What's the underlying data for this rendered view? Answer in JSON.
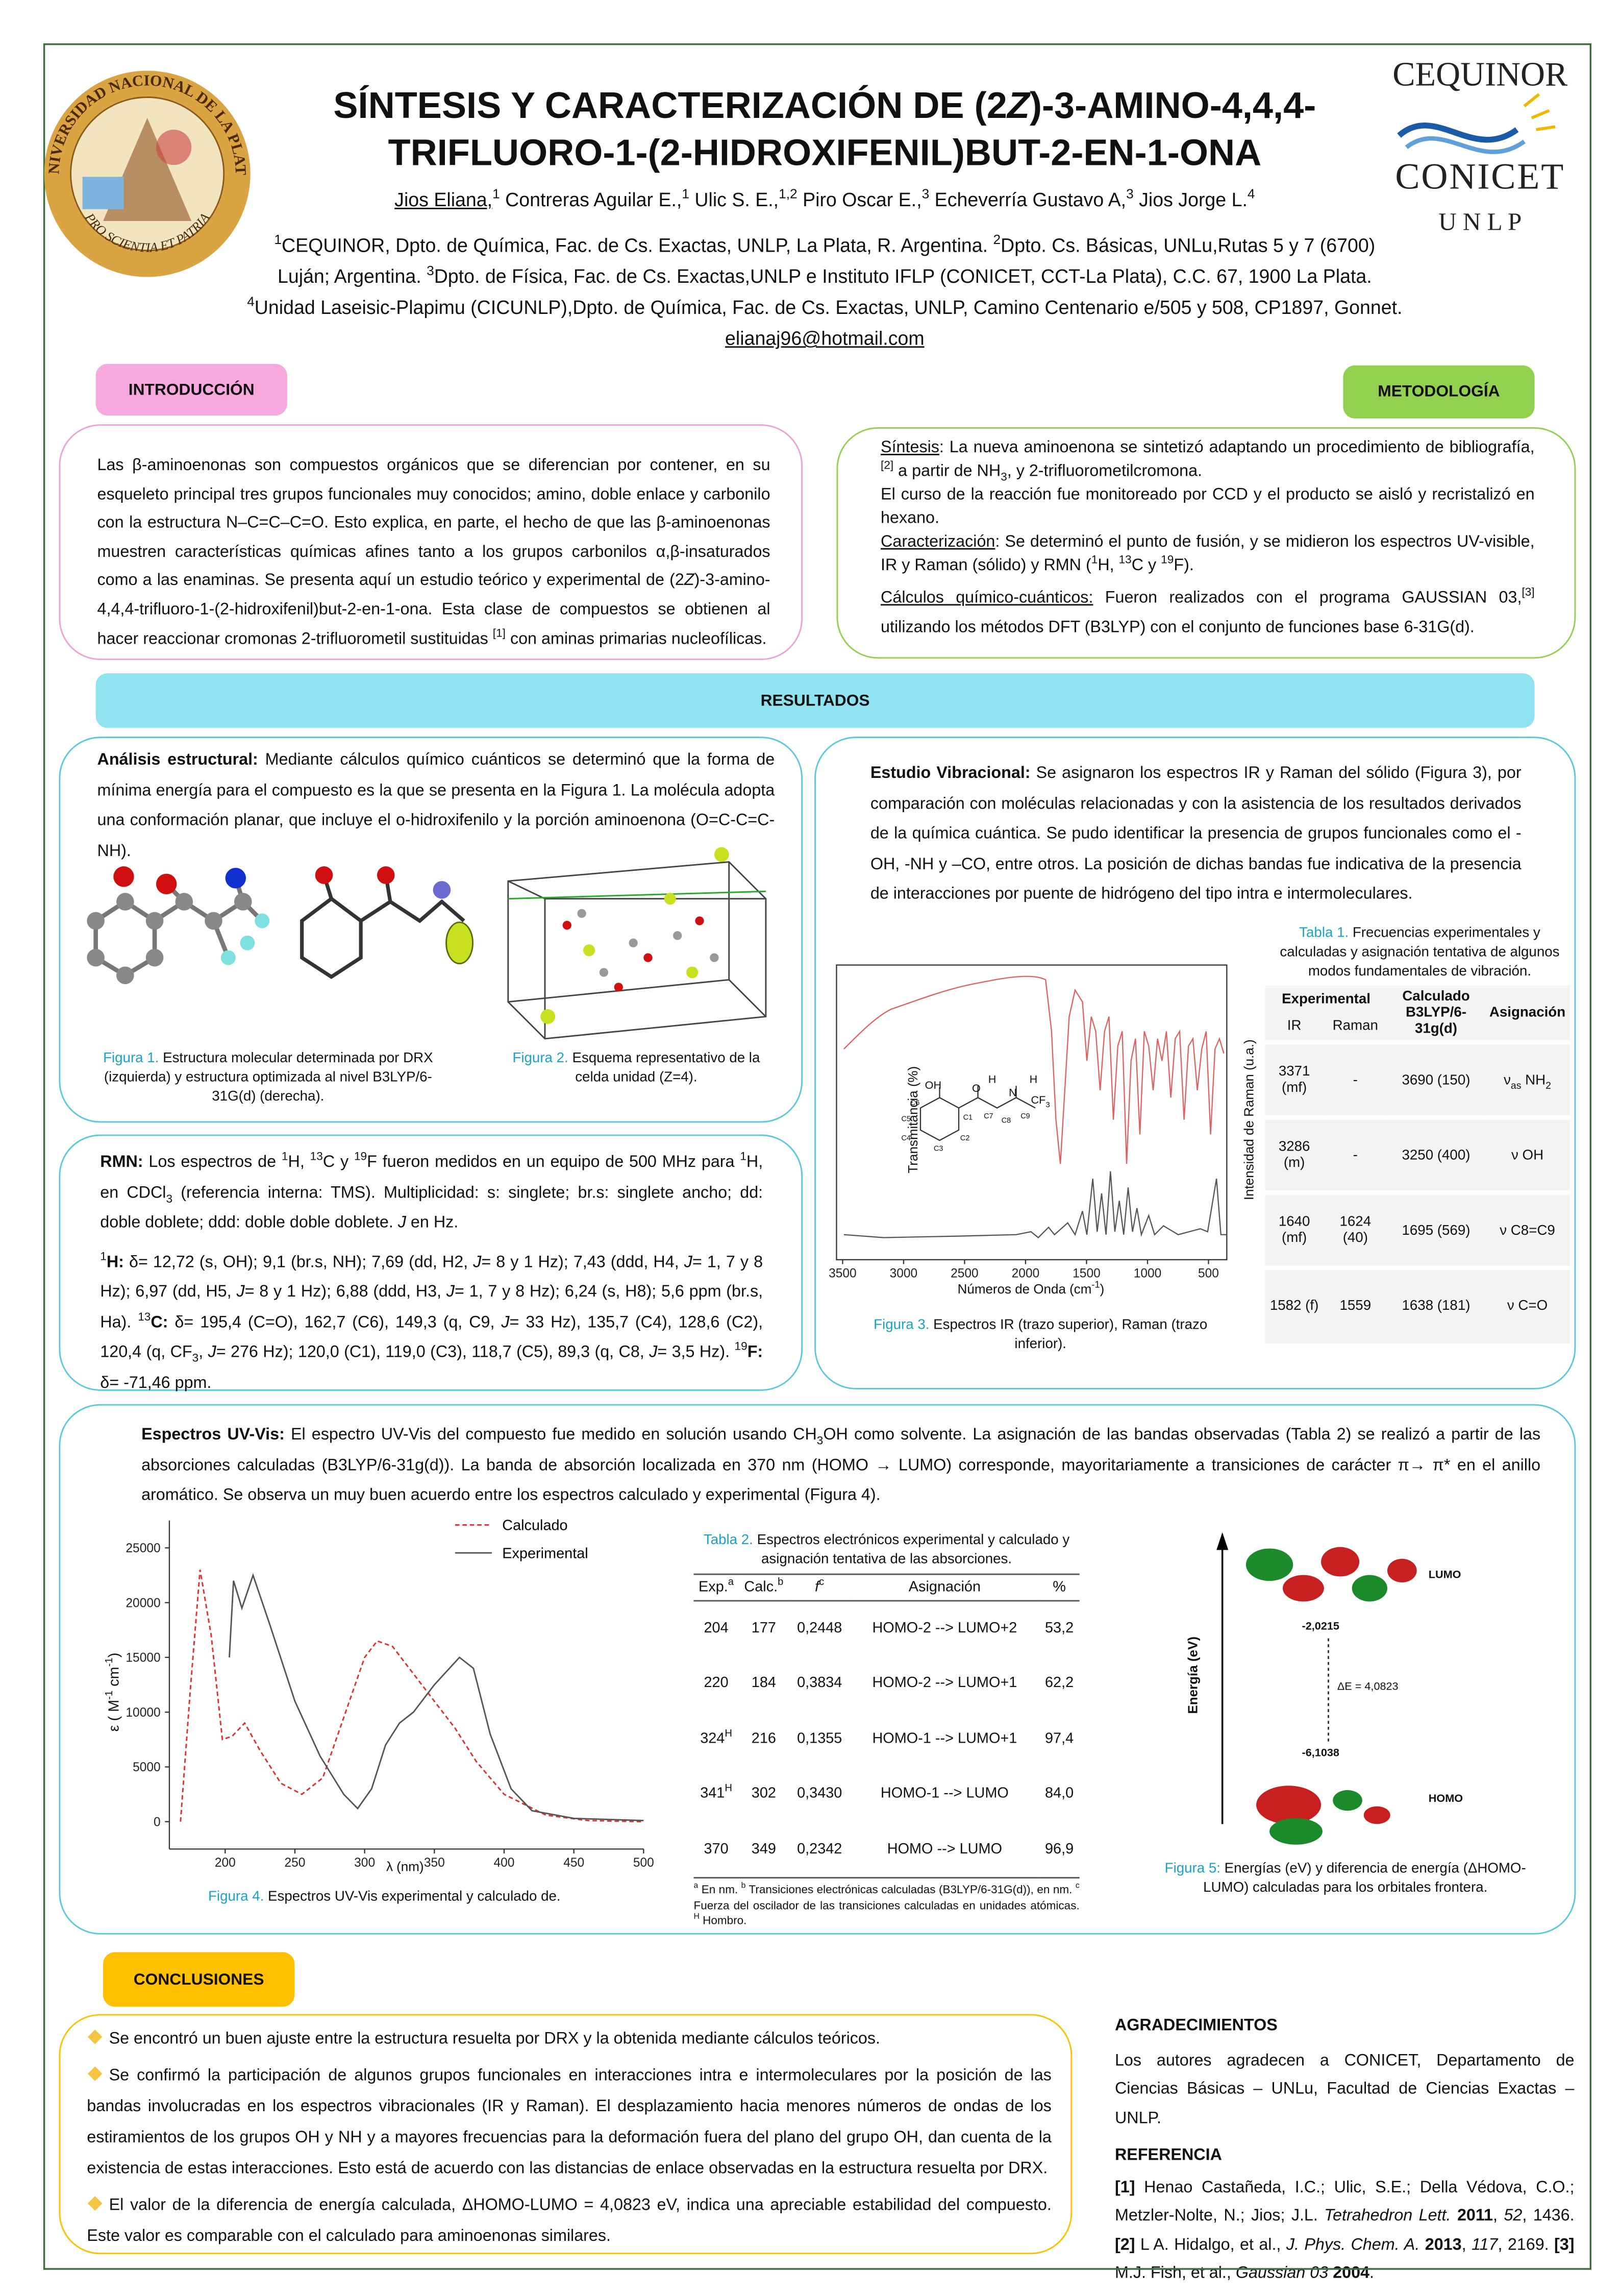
{
  "seal": {
    "top": "UNIVERSIDAD NACIONAL DE LA PLATA",
    "bottom": "PRO SCIENTIA ET PATRIA"
  },
  "logos": {
    "cequinor": "CEQUINOR",
    "conicet": "CONICET",
    "unlp": "U N L P"
  },
  "header": {
    "title_line1": [
      "SÍNTESIS Y CARACTERIZACIÓN DE (2",
      {
        "i": "Z"
      },
      ")-3-AMINO-4,4,4-"
    ],
    "title_line2": "TRIFLUORO-1-(2-HIDROXIFENIL)BUT-2-EN-1-ONA",
    "authors": [
      {
        "u": "Jios Eliana,"
      },
      {
        "sup": "1"
      },
      " Contreras Aguilar E.,",
      {
        "sup": "1"
      },
      " Ulic S. E.,",
      {
        "sup": "1,2"
      },
      " Piro Oscar E.,",
      {
        "sup": "3"
      },
      " Echeverría Gustavo A,",
      {
        "sup": "3"
      },
      " Jios Jorge L.",
      {
        "sup": "4"
      }
    ],
    "affiliations": [
      [
        {
          "sup": "1"
        },
        "CEQUINOR, Dpto. de Química, Fac. de Cs. Exactas, UNLP, La Plata, R. Argentina. ",
        {
          "sup": "2"
        },
        "Dpto. Cs. Básicas, UNLu,Rutas 5 y 7 (6700)"
      ],
      [
        "Luján; Argentina. ",
        {
          "sup": "3"
        },
        "Dpto. de Física, Fac. de Cs. Exactas,UNLP e Instituto IFLP (CONICET, CCT-La Plata), C.C. 67, 1900 La Plata."
      ],
      [
        {
          "sup": "4"
        },
        "Unidad Laseisic-Plapimu (CICUNLP),Dpto. de Química, Fac. de Cs. Exactas, UNLP, Camino Centenario e/505 y 508, CP1897, Gonnet."
      ]
    ],
    "email": "elianaj96@hotmail.com"
  },
  "sections": {
    "intro": "INTRODUCCIÓN",
    "metodologia": "METODOLOGÍA",
    "resultados": "RESULTADOS",
    "conclusiones": "CONCLUSIONES"
  },
  "intro": [
    "Las β-aminoenonas son compuestos orgánicos que se diferencian por contener, en su esqueleto principal tres grupos funcionales muy conocidos; amino, doble enlace y carbonilo con la estructura N–C=C–C=O. Esto explica, en parte, el hecho de que las β-aminoenonas muestren características químicas afines tanto a los grupos carbonilos α,β-insaturados como a las enaminas. Se presenta aquí un estudio teórico y experimental de (2",
    {
      "i": "Z"
    },
    ")-3-amino-4,4,4-trifluoro-1-(2-hidroxifenil)but-2-en-1-ona.  Esta clase de compuestos se obtienen al hacer reaccionar cromonas 2-trifluorometil sustituidas ",
    {
      "sup": "[1]"
    },
    " con aminas primarias nucleofílicas."
  ],
  "metodologia": [
    [
      {
        "u": "Síntesis"
      },
      ": La nueva aminoenona se sintetizó adaptando un procedimiento de bibliografía,",
      {
        "sup": "[2]"
      },
      " a partir de NH",
      {
        "sub": "3"
      },
      ", y 2-trifluorometilcromona."
    ],
    [
      "El curso de la reacción fue monitoreado por CCD y el producto se aisló y recristalizó en hexano."
    ],
    [
      {
        "u": "Caracterización"
      },
      ": Se determinó el punto de fusión, y se midieron los espectros UV-visible, IR y Raman (sólido) y RMN (",
      {
        "sup": "1"
      },
      "H, ",
      {
        "sup": "13"
      },
      "C y ",
      {
        "sup": "19"
      },
      "F)."
    ],
    [
      {
        "u": "Cálculos químico-cuánticos:"
      },
      " Fueron realizados con el programa GAUSSIAN 03,",
      {
        "sup": "[3]"
      },
      " utilizando los métodos DFT (B3LYP) con el conjunto de funciones base 6-31G(d)."
    ]
  ],
  "analisis": [
    {
      "b": "Análisis estructural:"
    },
    " Mediante cálculos químico cuánticos se determinó que la forma de mínima energía para el compuesto es la que se presenta en la Figura 1. La molécula adopta una conformación planar, que incluye el o-hidroxifenilo y la porción aminoenona (O=C-C=C-NH)."
  ],
  "figure1_caption": [
    {
      "fig": "Figura 1."
    },
    " Estructura molecular determinada por DRX (izquierda) y estructura optimizada al nivel B3LYP/6-31G(d) (derecha)."
  ],
  "figure2_caption": [
    {
      "fig": "Figura 2."
    },
    " Esquema representativo de la celda unidad (Z=4)."
  ],
  "rmn": [
    [
      {
        "b": "RMN:"
      },
      " Los espectros de ",
      {
        "sup": "1"
      },
      "H, ",
      {
        "sup": "13"
      },
      "C y ",
      {
        "sup": "19"
      },
      "F fueron medidos en un equipo de 500 MHz para ",
      {
        "sup": "1"
      },
      "H, en CDCl",
      {
        "sub": "3"
      },
      " (referencia interna: TMS). Multiplicidad: s: singlete; br.s: singlete ancho; dd: doble doblete; ddd: doble doble doblete. ",
      {
        "i": "J"
      },
      " en Hz."
    ],
    [
      {
        "sup": "1"
      },
      {
        "b": "H:"
      },
      " δ= 12,72 (s, OH); 9,1 (br.s, NH); 7,69 (dd, H2, ",
      {
        "i": "J"
      },
      "= 8 y 1 Hz); 7,43 (ddd, H4, ",
      {
        "i": "J"
      },
      "= 1, 7 y 8 Hz); 6,97 (dd, H5, ",
      {
        "i": "J"
      },
      "= 8 y 1 Hz); 6,88 (ddd, H3, ",
      {
        "i": "J"
      },
      "= 1, 7 y 8 Hz); 6,24 (s, H8); 5,6 ppm (br.s, Ha). ",
      {
        "sup": "13"
      },
      {
        "b": "C:"
      },
      " δ= 195,4 (C=O), 162,7 (C6), 149,3 (q, C9, ",
      {
        "i": "J"
      },
      "= 33 Hz), 135,7 (C4), 128,6 (C2), 120,4 (q, CF",
      {
        "sub": "3"
      },
      ", ",
      {
        "i": "J"
      },
      "= 276 Hz); 120,0 (C1), 119,0 (C3), 118,7 (C5), 89,3 (q, C8, ",
      {
        "i": "J"
      },
      "= 3,5 Hz). ",
      {
        "sup": "19"
      },
      {
        "b": "F:"
      },
      " δ= -71,46 ppm."
    ]
  ],
  "vibracional": [
    {
      "b": "Estudio Vibracional:"
    },
    " Se asignaron los espectros IR y Raman del sólido (Figura 3), por comparación con moléculas relacionadas y con la asistencia de los resultados derivados de la química cuántica. Se pudo identificar la presencia de grupos funcionales como el -OH, -NH y –CO, entre otros. La posición de dichas bandas fue indicativa de la presencia de interacciones por puente de hidrógeno del tipo intra e intermoleculares."
  ],
  "table1": {
    "caption": [
      {
        "fig": "Tabla 1."
      },
      " Frecuencias experimentales y calculadas y asignación tentativa de algunos modos fundamentales de vibración."
    ],
    "head": {
      "experimental": "Experimental",
      "calculado": "Calculado",
      "calculado_method": "B3LYP/6-31g(d)",
      "asignacion": "Asignación",
      "ir": "IR",
      "raman": "Raman"
    },
    "rows": [
      [
        "3371 (mf)",
        "-",
        "3690 (150)",
        [
          "ν",
          {
            "sub": "as"
          },
          " NH",
          {
            "sub": "2"
          }
        ]
      ],
      [
        "3286 (m)",
        "-",
        "3250 (400)",
        "ν OH"
      ],
      [
        "1640 (mf)",
        "1624 (40)",
        "1695 (569)",
        "ν C8=C9"
      ],
      [
        "1582 (f)",
        "1559",
        "1638 (181)",
        "ν C=O"
      ]
    ]
  },
  "figure3": {
    "caption": [
      {
        "fig": "Figura 3."
      },
      " Espectros IR (trazo superior), Raman (trazo inferior)."
    ],
    "inset_labels": [
      "OH",
      "O",
      "H",
      "N",
      "H",
      "C6",
      "C5",
      "C4",
      "C3",
      "C2",
      "C1",
      "C7",
      "C8",
      "C9"
    ],
    "inset_cf3": [
      "CF",
      {
        "sub": "3"
      }
    ]
  },
  "chart_data": [
    {
      "type": "line",
      "xlabel": [
        "Números de Onda (cm",
        {
          "sup": "-1"
        },
        ")"
      ],
      "ylabel": "Transmitancia (%)",
      "y2label": "Intensidad de Raman (u.a.)",
      "xlim": [
        3550,
        350
      ],
      "xticks": [
        3500,
        3000,
        2500,
        2000,
        1500,
        1000,
        500
      ]
    },
    {
      "type": "line",
      "xlabel": "λ (nm)",
      "ylabel": [
        "ε ( M",
        {
          "sup": "-1"
        },
        " cm",
        {
          "sup": "-1"
        },
        ")"
      ],
      "xlim": [
        160,
        500
      ],
      "xticks": [
        200,
        250,
        300,
        350,
        400,
        450,
        500
      ],
      "ylim": [
        -2500,
        27500
      ],
      "yticks": [
        0,
        5000,
        10000,
        15000,
        20000,
        25000
      ],
      "legend": "upper right",
      "series": [
        {
          "name": "Calculado",
          "color": "#e03030",
          "line_style": "dashed",
          "x": [
            168,
            175,
            182,
            190,
            198,
            205,
            214,
            225,
            240,
            255,
            270,
            285,
            300,
            309,
            320,
            335,
            350,
            365,
            380,
            400,
            430,
            460,
            500
          ],
          "values": [
            0,
            12000,
            23000,
            17000,
            7500,
            7800,
            9000,
            6500,
            3500,
            2500,
            4000,
            9500,
            15000,
            16500,
            16000,
            13500,
            11000,
            8500,
            5500,
            2500,
            600,
            100,
            0
          ]
        },
        {
          "name": "Experimental",
          "color": "#555555",
          "line_style": "solid",
          "x": [
            203,
            206,
            212,
            220,
            232,
            250,
            268,
            285,
            295,
            305,
            315,
            325,
            335,
            350,
            368,
            378,
            390,
            405,
            420,
            450,
            500
          ],
          "values": [
            15000,
            22000,
            19500,
            22500,
            18000,
            11000,
            6000,
            2500,
            1200,
            3000,
            7000,
            9000,
            10000,
            12500,
            15000,
            14000,
            8000,
            3000,
            1000,
            300,
            100
          ]
        }
      ]
    }
  ],
  "uvvis": [
    {
      "b": "Espectros UV-Vis:"
    },
    " El espectro UV-Vis del compuesto fue medido en solución usando CH",
    {
      "sub": "3"
    },
    "OH como solvente. La asignación de las bandas observadas (Tabla 2) se realizó a partir de las absorciones calculadas (B3LYP/6-31g(d)). La banda de absorción localizada en 370 nm (HOMO → LUMO) corresponde, mayoritariamente a transiciones de carácter π→ π* en  el anillo aromático. Se observa un muy buen acuerdo entre los espectros calculado y experimental (Figura 4)."
  ],
  "figure4_caption": [
    {
      "fig": "Figura 4."
    },
    " Espectros UV-Vis experimental  y calculado de."
  ],
  "table2": {
    "caption": [
      {
        "fig": "Tabla 2."
      },
      " Espectros electrónicos experimental y calculado y asignación tentativa de las absorciones."
    ],
    "head": [
      [
        "Exp.",
        {
          "sup": "a"
        }
      ],
      [
        "Calc.",
        {
          "sup": "b"
        }
      ],
      [
        {
          "i": "f"
        },
        {
          "sup": "c"
        }
      ],
      [
        "Asignación"
      ],
      [
        "%"
      ]
    ],
    "rows": [
      [
        "204",
        "177",
        "0,2448",
        "HOMO-2 --> LUMO+2",
        "53,2"
      ],
      [
        "220",
        "184",
        "0,3834",
        "HOMO-2 --> LUMO+1",
        "62,2"
      ],
      [
        [
          "324",
          {
            "sup": "H"
          }
        ],
        "216",
        "0,1355",
        "HOMO-1 --> LUMO+1",
        "97,4"
      ],
      [
        [
          "341",
          {
            "sup": "H"
          }
        ],
        "302",
        "0,3430",
        "HOMO-1 --> LUMO",
        "84,0"
      ],
      [
        "370",
        "349",
        "0,2342",
        "HOMO --> LUMO",
        "96,9"
      ]
    ],
    "footnote": [
      {
        "sup": "a"
      },
      " En nm. ",
      {
        "sup": "b"
      },
      " Transiciones electrónicas calculadas (B3LYP/6-31G(d)), en nm. ",
      {
        "sup": "c"
      },
      " Fuerza del oscilador de las transiciones calculadas en unidades atómicas. ",
      {
        "sup": "H"
      },
      " Hombro."
    ]
  },
  "figure5": {
    "axis_label": "Energía (eV)",
    "lumo": "LUMO",
    "homo": "HOMO",
    "lumo_energy": "-2,0215",
    "homo_energy": "-6,1038",
    "gap": "ΔE = 4,0823",
    "caption": [
      {
        "fig": "Figura 5:"
      },
      " Energías (eV) y diferencia de energía (ΔHOMO-LUMO) calculadas para los orbitales frontera."
    ]
  },
  "conclusiones": [
    "Se encontró un buen ajuste entre la estructura resuelta por DRX y la obtenida mediante cálculos teóricos.",
    "Se confirmó la participación de algunos grupos funcionales en interacciones intra e intermoleculares por la posición de las bandas involucradas en los espectros vibracionales (IR y Raman). El desplazamiento hacia menores números de ondas de los estiramientos de los grupos OH y NH y a mayores frecuencias para la deformación fuera del plano del grupo OH, dan cuenta de la existencia de estas interacciones. Esto está de acuerdo con las distancias de enlace observadas en la estructura resuelta por DRX.",
    "El valor de la diferencia de energía calculada, ΔHOMO-LUMO = 4,0823 eV, indica una apreciable estabilidad del compuesto. Este valor es comparable con el calculado para aminoenonas similares."
  ],
  "agradecimientos": {
    "title": "AGRADECIMIENTOS",
    "text": "Los autores agradecen a CONICET, Departamento de Ciencias Básicas – UNLu, Facultad de  Ciencias Exactas – UNLP."
  },
  "referencia": {
    "title": "REFERENCIA",
    "text": [
      {
        "b": "[1]"
      },
      " Henao Castañeda, I.C.; Ulic, S.E.; Della Védova, C.O.; Metzler-Nolte, N.; Jios; J.L. ",
      {
        "i": "Tetrahedron Lett."
      },
      " ",
      {
        "b": "2011"
      },
      ", ",
      {
        "i": "52"
      },
      ", 1436. ",
      {
        "b": "[2]"
      },
      " L A. Hidalgo, et al., ",
      {
        "i": "J. Phys. Chem. A."
      },
      " ",
      {
        "b": "2013"
      },
      ", ",
      {
        "i": "117"
      },
      ", 2169. ",
      {
        "b": "[3]"
      },
      " M.J. Fish, et al., ",
      {
        "i": "Gaussian 03"
      },
      " ",
      {
        "b": "2004"
      },
      "."
    ]
  }
}
